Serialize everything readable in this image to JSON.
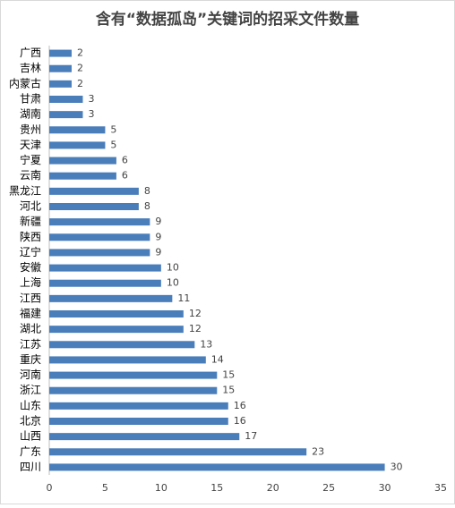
{
  "chart_data": {
    "type": "barh",
    "title": "含有“数据孤岛”关键词的招采文件数量",
    "categories": [
      "广西",
      "吉林",
      "内蒙古",
      "甘肃",
      "湖南",
      "贵州",
      "天津",
      "宁夏",
      "云南",
      "黑龙江",
      "河北",
      "新疆",
      "陕西",
      "辽宁",
      "安徽",
      "上海",
      "江西",
      "福建",
      "湖北",
      "江苏",
      "重庆",
      "河南",
      "浙江",
      "山东",
      "北京",
      "山西",
      "广东",
      "四川"
    ],
    "values": [
      2,
      2,
      2,
      3,
      3,
      5,
      5,
      6,
      6,
      8,
      8,
      9,
      9,
      9,
      10,
      10,
      11,
      12,
      12,
      13,
      14,
      15,
      15,
      16,
      16,
      17,
      23,
      30
    ],
    "color": "#4a7ebb",
    "xlim": [
      0,
      35
    ],
    "xticks": [
      0,
      5,
      10,
      15,
      20,
      25,
      30,
      35
    ],
    "grid": false
  }
}
